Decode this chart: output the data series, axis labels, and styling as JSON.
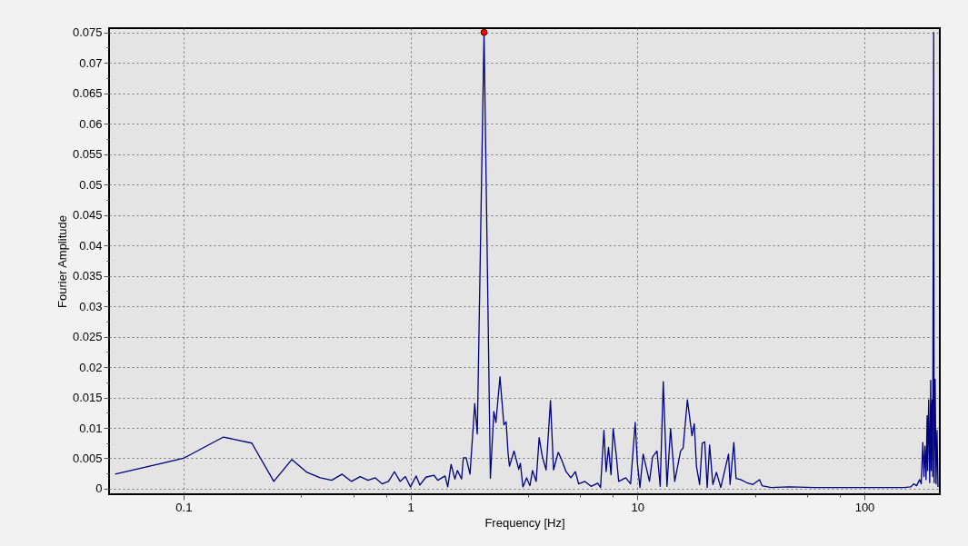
{
  "chart_data": {
    "type": "line",
    "xlabel": "Frequency [Hz]",
    "ylabel": "Fourier Amplitude",
    "log": "x",
    "grid": true,
    "xlim": [
      0.047,
      215
    ],
    "ylim": [
      -0.0009,
      0.0757
    ],
    "xticks": [
      0.1,
      {
        "value": 0.33,
        "label": null
      },
      {
        "value": 0.56,
        "label": null
      },
      {
        "value": 0.78,
        "label": null
      },
      1,
      {
        "value": 3.3,
        "label": null
      },
      {
        "value": 5.6,
        "label": null
      },
      {
        "value": 7.8,
        "label": null
      },
      10,
      {
        "value": 33,
        "label": null
      },
      {
        "value": 56,
        "label": null
      },
      {
        "value": 78,
        "label": null
      },
      100
    ],
    "yticks": [
      0,
      {
        "value": 0.0025,
        "label": null
      },
      0.005,
      {
        "value": 0.0075,
        "label": null
      },
      0.01,
      {
        "value": 0.0125,
        "label": null
      },
      0.015,
      {
        "value": 0.0175,
        "label": null
      },
      0.02,
      {
        "value": 0.0225,
        "label": null
      },
      0.025,
      {
        "value": 0.0275,
        "label": null
      },
      0.03,
      {
        "value": 0.0325,
        "label": null
      },
      0.035,
      {
        "value": 0.0375,
        "label": null
      },
      0.04,
      {
        "value": 0.0425,
        "label": null
      },
      0.045,
      {
        "value": 0.0475,
        "label": null
      },
      0.05,
      {
        "value": 0.0525,
        "label": null
      },
      0.055,
      {
        "value": 0.0575,
        "label": null
      },
      0.06,
      {
        "value": 0.0625,
        "label": null
      },
      0.065,
      {
        "value": 0.0675,
        "label": null
      },
      0.07,
      {
        "value": 0.0725,
        "label": null
      },
      0.075
    ],
    "series": [
      {
        "color": "#000080",
        "marker": "none",
        "x": [
          0.05,
          0.1,
          0.15,
          0.2,
          0.25,
          0.3,
          0.35,
          0.4,
          0.45,
          0.5,
          0.55,
          0.6,
          0.65,
          0.7,
          0.75,
          0.8,
          0.85,
          0.9,
          0.95,
          1.0,
          1.06,
          1.1,
          1.17,
          1.27,
          1.32,
          1.42,
          1.46,
          1.51,
          1.57,
          1.61,
          1.68,
          1.71,
          1.76,
          1.83,
          1.92,
          1.97,
          2.11,
          2.25,
          2.33,
          2.38,
          2.48,
          2.58,
          2.64,
          2.69,
          2.73,
          2.86,
          3.0,
          3.05,
          3.13,
          3.25,
          3.36,
          3.45,
          3.58,
          3.69,
          3.81,
          3.96,
          4.14,
          4.27,
          4.48,
          4.62,
          4.85,
          5.09,
          5.33,
          5.51,
          5.87,
          6.25,
          6.69,
          6.88,
          7.12,
          7.28,
          7.46,
          7.65,
          7.82,
          8.08,
          8.27,
          8.89,
          9.33,
          9.78,
          10.0,
          10.26,
          10.6,
          11.3,
          11.66,
          12.2,
          12.6,
          13.0,
          13.5,
          14.0,
          14.6,
          15.5,
          15.9,
          16.6,
          17.0,
          17.4,
          17.8,
          18.2,
          18.8,
          19.3,
          19.8,
          20.3,
          20.8,
          21.5,
          22.3,
          23.3,
          24.5,
          25.2,
          25.6,
          26.6,
          27.2,
          28.5,
          30.3,
          32.3,
          34.5,
          35.4,
          38.8,
          46.7,
          60,
          100,
          140,
          150,
          160,
          165,
          170,
          175,
          178,
          181,
          183,
          185,
          187,
          189,
          190,
          192,
          194,
          196,
          197,
          198,
          199,
          200,
          202,
          203,
          205,
          207,
          209,
          211
        ],
        "values": [
          0.0024,
          0.005,
          0.0085,
          0.0075,
          0.0012,
          0.0048,
          0.0027,
          0.0018,
          0.0014,
          0.0024,
          0.0012,
          0.002,
          0.0014,
          0.0018,
          0.0008,
          0.0012,
          0.0028,
          0.0012,
          0.002,
          0.0003,
          0.0021,
          0.0006,
          0.0019,
          0.0022,
          0.0014,
          0.0021,
          0.0003,
          0.004,
          0.0016,
          0.003,
          0.0016,
          0.0051,
          0.0051,
          0.0024,
          0.014,
          0.009,
          0.075,
          0.0017,
          0.0127,
          0.0109,
          0.0184,
          0.0105,
          0.011,
          0.006,
          0.0037,
          0.0062,
          0.0032,
          0.0042,
          0.0003,
          0.0018,
          0.0005,
          0.003,
          0.0012,
          0.0084,
          0.0053,
          0.0031,
          0.0145,
          0.0031,
          0.006,
          0.0049,
          0.0028,
          0.0018,
          0.0028,
          0.0008,
          0.0012,
          0.0004,
          0.0009,
          0.0002,
          0.0096,
          0.0028,
          0.0068,
          0.0023,
          0.0099,
          0.0053,
          0.0012,
          0.0018,
          0.0008,
          0.0109,
          0.0042,
          0.0002,
          0.0057,
          0.0012,
          0.0052,
          0.0062,
          0.0004,
          0.0176,
          0.0004,
          0.0099,
          0.0012,
          0.0062,
          0.0067,
          0.0146,
          0.0117,
          0.0087,
          0.0107,
          0.0037,
          0.0007,
          0.0075,
          0.0077,
          0.0002,
          0.0072,
          0.0007,
          0.0027,
          0.0002,
          0.0037,
          0.0057,
          0.0007,
          0.0076,
          0.0017,
          0.0015,
          0.001,
          0.0007,
          0.0015,
          0.0005,
          0.0002,
          0.0003,
          0.0002,
          0.0002,
          0.0002,
          0.0002,
          0.0003,
          0.0008,
          0.0005,
          0.0015,
          0.0008,
          0.0076,
          0.002,
          0.007,
          0.0015,
          0.012,
          0.003,
          0.0146,
          0.001,
          0.0178,
          0.003,
          0.012,
          0.0146,
          0.002,
          0.075,
          0.001,
          0.018,
          0.0008,
          0.0096,
          0.0003
        ]
      },
      {
        "type": "scatter",
        "color": "#ff0000",
        "marker": "circle",
        "x": [
          2.11
        ],
        "values": [
          0.075
        ]
      }
    ]
  }
}
